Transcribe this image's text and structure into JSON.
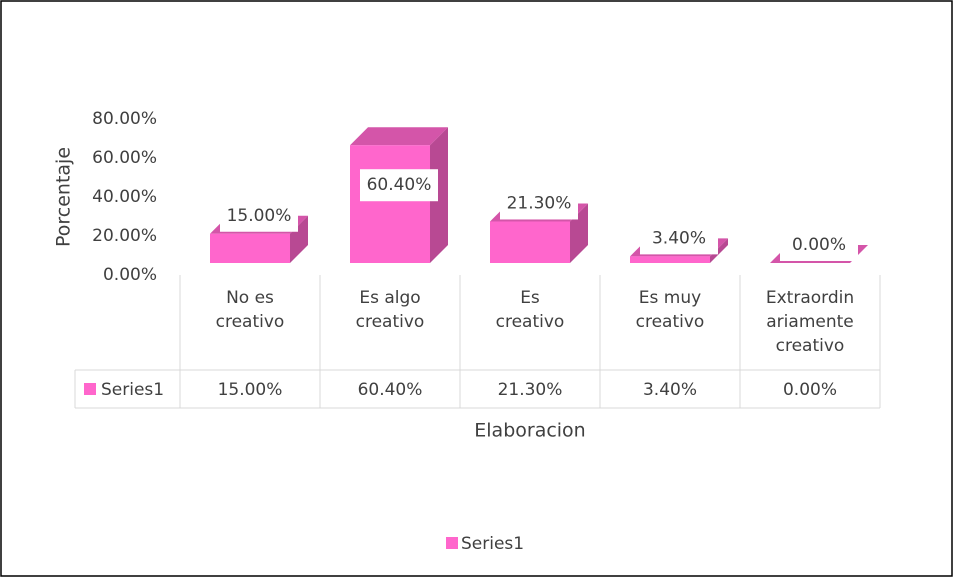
{
  "chart_data": {
    "type": "bar3d",
    "y_label": "Porcentaje",
    "x_label": "Elaboracion",
    "categories": [
      "No es creativo",
      "Es algo creativo",
      "Es creativo",
      "Es muy creativo",
      "Extraordinariamente creativo"
    ],
    "series": [
      {
        "name": "Series1",
        "color": "#ff66cc",
        "values": [
          15,
          60.4,
          21.3,
          3.4,
          0
        ],
        "value_labels": [
          "15.00%",
          "60.40%",
          "21.30%",
          "3.40%",
          "0.00%"
        ]
      }
    ],
    "ylim": [
      0,
      80
    ],
    "yticks": [
      {
        "value": 0,
        "label": "0.00%"
      },
      {
        "value": 20,
        "label": "20.00%"
      },
      {
        "value": 40,
        "label": "40.00%"
      },
      {
        "value": 60,
        "label": "60.00%"
      },
      {
        "value": 80,
        "label": "80.00%"
      }
    ],
    "data_table": true,
    "legend": "bottom"
  }
}
